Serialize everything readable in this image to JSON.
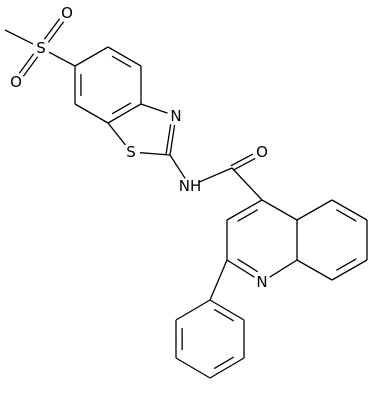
{
  "labels": {
    "sulfonyl_s": "S",
    "sulfonyl_o1": "O",
    "sulfonyl_o2": "O",
    "thiazole_s": "S",
    "thiazole_n": "N",
    "amide_nh": "NH",
    "carbonyl_o": "O",
    "quinoline_n": "N"
  }
}
